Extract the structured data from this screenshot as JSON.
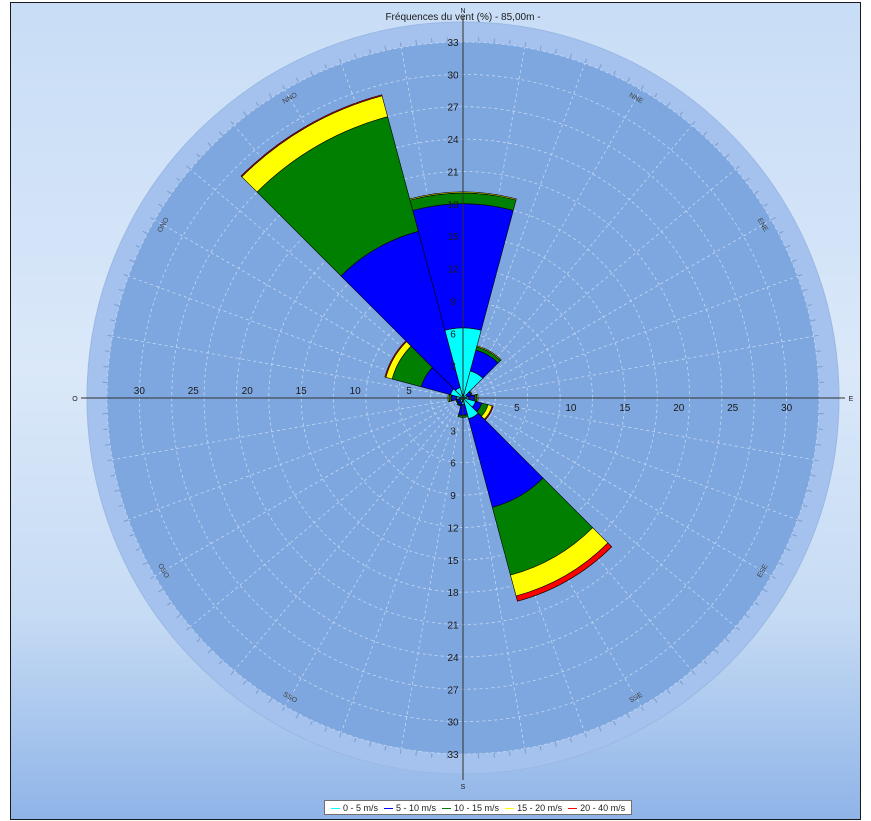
{
  "chart_data": {
    "type": "wind-rose",
    "title": "Fréquences du vent (%) - 85,00m -",
    "directions": [
      "N",
      "NNE",
      "ENE",
      "E",
      "ESE",
      "SSE",
      "S",
      "SSO",
      "OSO",
      "O",
      "ONO",
      "NNO"
    ],
    "direction_start_deg": 0,
    "direction_step_deg": 30,
    "horizontal_ticks": [
      5,
      10,
      15,
      20,
      25,
      30
    ],
    "vertical_ticks": [
      3,
      6,
      9,
      12,
      15,
      18,
      21,
      24,
      27,
      30,
      33
    ],
    "r_max": 33,
    "series": [
      {
        "name": "0 - 5 m/s",
        "color": "#00ffff",
        "values": [
          6.5,
          2.6,
          0.4,
          0.5,
          1.2,
          2.0,
          0.6,
          0.4,
          0.3,
          0.6,
          1.2,
          1.0
        ]
      },
      {
        "name": "5 - 10 m/s",
        "color": "#0000ff",
        "values": [
          11.5,
          2.0,
          0.4,
          0.6,
          0.6,
          8.5,
          1.0,
          0.3,
          0.3,
          0.5,
          2.8,
          15.0
        ]
      },
      {
        "name": "10 - 15 m/s",
        "color": "#007f00",
        "values": [
          1.0,
          0.3,
          0.1,
          0.2,
          0.6,
          6.5,
          0.2,
          0.1,
          0.1,
          0.2,
          2.8,
          11.0
        ]
      },
      {
        "name": "15 - 20 m/s",
        "color": "#ffff00",
        "values": [
          0.1,
          0.1,
          0.0,
          0.1,
          0.4,
          2.0,
          0.0,
          0.0,
          0.0,
          0.1,
          0.6,
          2.0
        ]
      },
      {
        "name": "20 - 40 m/s",
        "color": "#ff0000",
        "values": [
          0.0,
          0.0,
          0.0,
          0.0,
          0.1,
          0.5,
          0.0,
          0.0,
          0.0,
          0.0,
          0.1,
          0.1
        ]
      }
    ],
    "legend_position": "bottom-center",
    "grid": true
  },
  "legend": {
    "items": [
      {
        "label": "0 - 5 m/s",
        "color": "#00ffff"
      },
      {
        "label": "5 - 10 m/s",
        "color": "#0000ff"
      },
      {
        "label": "10 - 15 m/s",
        "color": "#007f00"
      },
      {
        "label": "15 - 20 m/s",
        "color": "#ffff00"
      },
      {
        "label": "20 - 40 m/s",
        "color": "#ff0000"
      }
    ]
  },
  "colors": {
    "polar_fill": "#7ea7e0",
    "outer_ring": "#a4c2ed",
    "grid_line": "#c4d8f2",
    "axis_line": "#303030",
    "sector_stroke": "#000000"
  }
}
